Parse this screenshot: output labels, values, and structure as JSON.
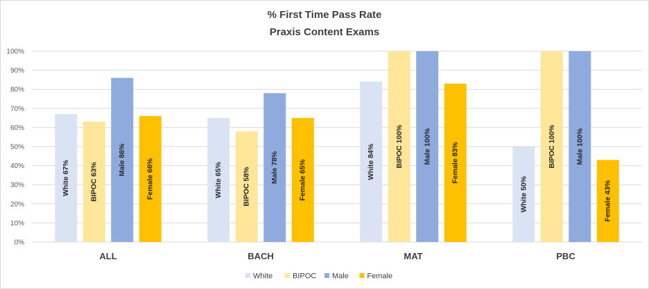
{
  "chart_data": {
    "type": "bar",
    "title": "% First Time Pass Rate",
    "subtitle": "Praxis Content Exams",
    "categories": [
      "ALL",
      "BACH",
      "MAT",
      "PBC"
    ],
    "series": [
      {
        "name": "White",
        "color": "#dae3f3",
        "values": [
          67,
          65,
          84,
          50
        ],
        "labels": [
          "White 67%",
          "White 65%",
          "White 84%",
          "White 50%"
        ]
      },
      {
        "name": "BIPOC",
        "color": "#ffe699",
        "values": [
          63,
          58,
          100,
          100
        ],
        "labels": [
          "BIPOC 63%",
          "BIPOC 58%",
          "BIPOC 100%",
          "BIPOC 100%"
        ]
      },
      {
        "name": "Male",
        "color": "#8faadc",
        "values": [
          86,
          78,
          100,
          100
        ],
        "labels": [
          "Male 86%",
          "Male 78%",
          "Male 100%",
          "Male 100%"
        ]
      },
      {
        "name": "Female",
        "color": "#ffc000",
        "values": [
          66,
          65,
          83,
          43
        ],
        "labels": [
          "Female 66%",
          "Female 65%",
          "Female 83%",
          "Female 43%"
        ]
      }
    ],
    "y_ticks": [
      "0%",
      "10%",
      "20%",
      "30%",
      "40%",
      "50%",
      "60%",
      "70%",
      "80%",
      "90%",
      "100%"
    ],
    "ylim": [
      0,
      100
    ],
    "xlabel": "",
    "ylabel": "",
    "grid": true,
    "legend": "bottom"
  }
}
